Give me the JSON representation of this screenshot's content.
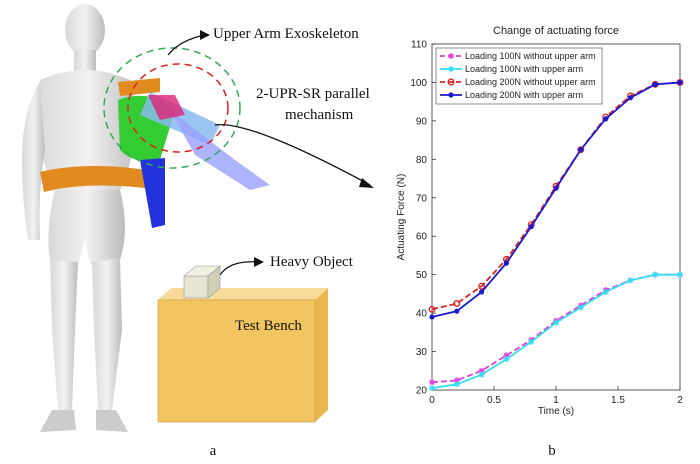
{
  "figure": {
    "callouts": [
      "Upper Arm Exoskeleton",
      "2-UPR-SR parallel",
      "mechanism",
      "Heavy Object",
      "Test Bench"
    ],
    "panel_labels": [
      "a",
      "b"
    ]
  },
  "chart_data": {
    "type": "line",
    "title": "Change of actuating force",
    "x_label": "Time (s)",
    "y_label": "Actuating Force (N)",
    "x": [
      0,
      0.2,
      0.4,
      0.6,
      0.8,
      1.0,
      1.2,
      1.4,
      1.6,
      1.8,
      2.0
    ],
    "xlim": [
      0,
      2
    ],
    "ylim": [
      20,
      110
    ],
    "xticks": [
      0,
      0.5,
      1,
      1.5,
      2
    ],
    "yticks": [
      20,
      30,
      40,
      50,
      60,
      70,
      80,
      90,
      100,
      110
    ],
    "legend": "upper-left",
    "series": [
      {
        "name": "Loading 100N without upper arm",
        "color": "#e040e0",
        "dashed": true,
        "marker": "star",
        "values": [
          22,
          22.5,
          25,
          29,
          33,
          38,
          42,
          46,
          48.5,
          50,
          50
        ]
      },
      {
        "name": "Loading 100N with upper arm",
        "color": "#33e0f0",
        "dashed": false,
        "marker": "star",
        "values": [
          20.5,
          21.5,
          24,
          28,
          32.5,
          37.5,
          41.5,
          45.5,
          48.5,
          50,
          50
        ]
      },
      {
        "name": "Loading 200N without upper arm",
        "color": "#e02020",
        "dashed": true,
        "marker": "circle",
        "values": [
          41,
          42.5,
          47,
          54,
          63,
          73,
          82.5,
          91,
          96.5,
          99.5,
          100
        ]
      },
      {
        "name": "Loading 200N with upper arm",
        "color": "#1a1ad0",
        "dashed": false,
        "marker": "dot",
        "values": [
          39,
          40.5,
          45.5,
          53,
          62.5,
          72.5,
          82.5,
          90.5,
          96,
          99.5,
          100
        ]
      }
    ]
  }
}
